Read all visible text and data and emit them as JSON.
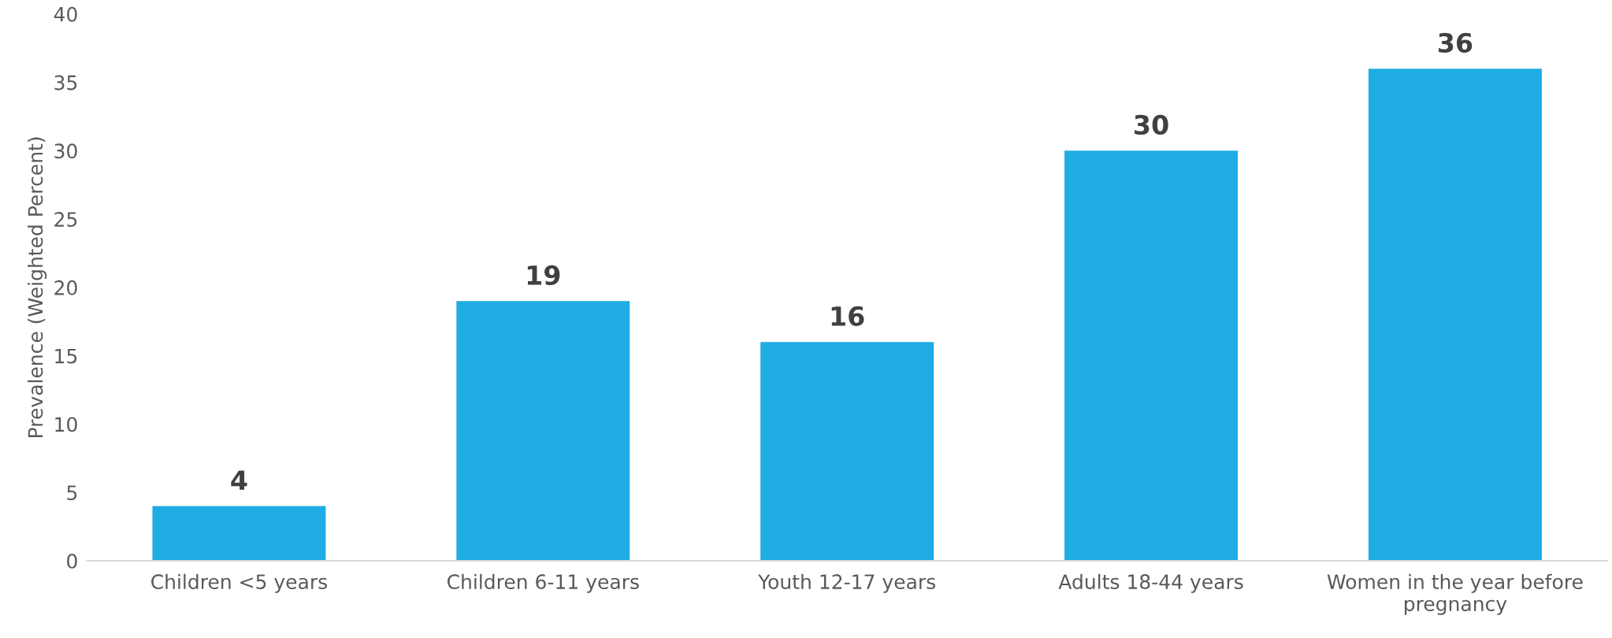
{
  "chart_data": {
    "type": "bar",
    "ylabel": "Prevalence (Weighted Percent)",
    "categories": [
      "Children <5 years",
      "Children 6-11 years",
      "Youth 12-17 years",
      "Adults 18-44 years",
      "Women in the year before\npregnancy"
    ],
    "values": [
      4,
      19,
      16,
      30,
      36
    ],
    "color": "#1eace3",
    "ylim": [
      0,
      40
    ],
    "yticks": [
      0,
      5,
      10,
      15,
      20,
      25,
      30,
      35,
      40
    ],
    "data_labels": true,
    "grid": false,
    "legend": false
  }
}
